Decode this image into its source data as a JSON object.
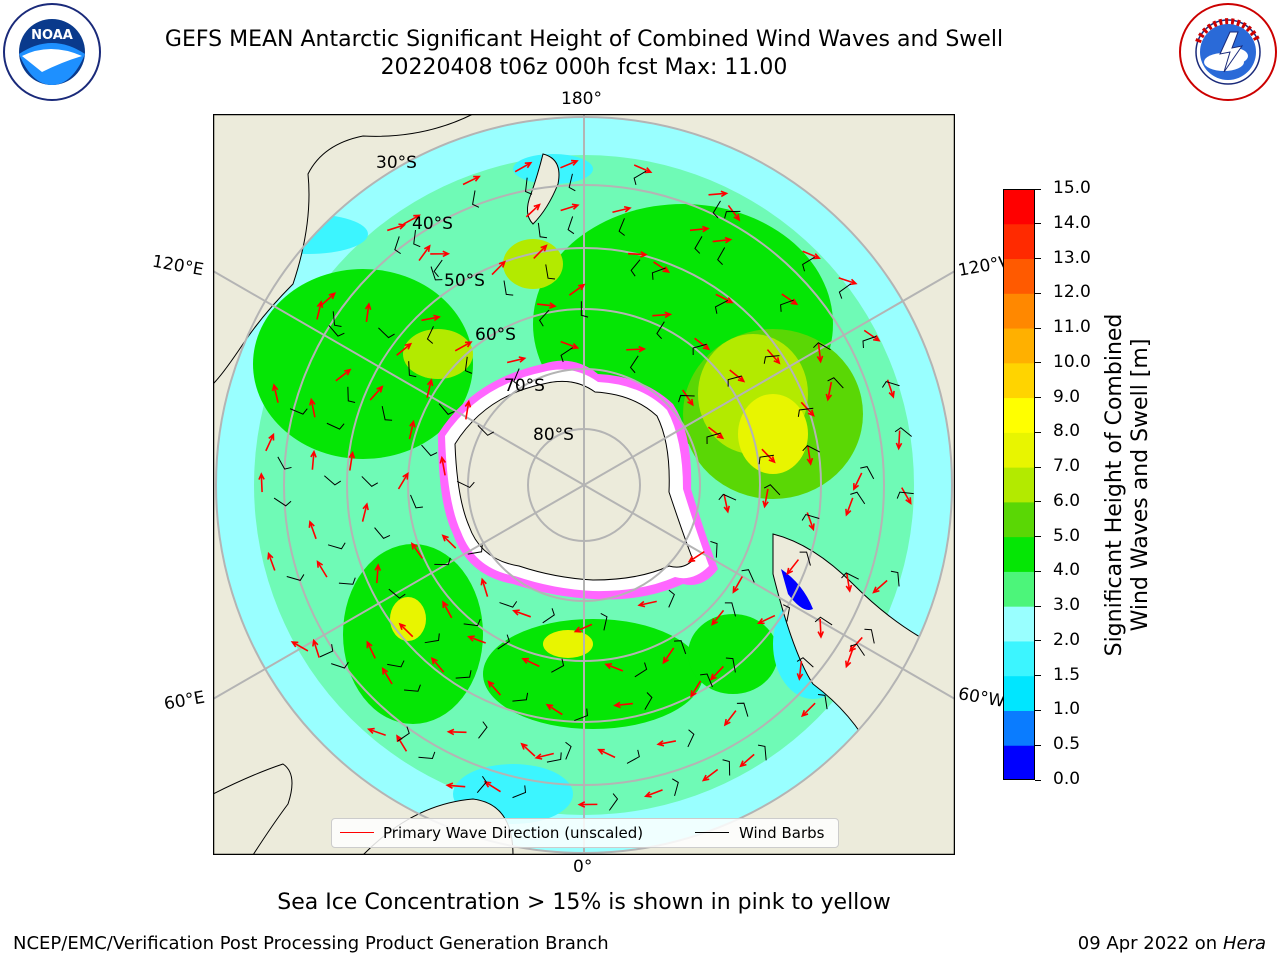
{
  "title": {
    "line1": "GEFS MEAN Antarctic Significant Height of Combined Wind Waves and Swell",
    "line2": "20220408 t06z 000h fcst   Max: 11.00"
  },
  "logos": {
    "noaa_text": "NOAA",
    "noaa_ring": "NATIONAL OCEANIC AND ATMOSPHERIC ADMINISTRATION · U.S. DEPARTMENT OF COMMERCE",
    "nws_ring": "NATIONAL WEATHER SERVICE"
  },
  "map": {
    "longitude_labels": [
      "180°",
      "120°E",
      "120°W",
      "60°E",
      "60°W",
      "0°"
    ],
    "latitude_labels": [
      "30°S",
      "40°S",
      "50°S",
      "60°S",
      "70°S",
      "80°S"
    ],
    "colors": {
      "land": "#ecebdb",
      "ice_edge": "#ff33ff",
      "ice_inner": "#ffb020",
      "wave_arrow": "#ff0000",
      "wind_barb": "#000000",
      "grid": "#b4b4b4"
    }
  },
  "legend": {
    "primary_wave": "Primary Wave Direction (unscaled)",
    "wind_barbs": "Wind Barbs"
  },
  "colorbar": {
    "title_line1": "Significant Height of Combined",
    "title_line2": "Wind Waves and Swell [m]",
    "ticks": [
      "0.0",
      "0.5",
      "1.0",
      "1.5",
      "2.0",
      "3.0",
      "4.0",
      "5.0",
      "6.0",
      "7.0",
      "8.0",
      "9.0",
      "10.0",
      "11.0",
      "12.0",
      "13.0",
      "14.0",
      "15.0"
    ],
    "colors": [
      "#0000ff",
      "#0a7cff",
      "#00e6ff",
      "#3cf5ff",
      "#99ffff",
      "#4cf57a",
      "#05e605",
      "#5ad705",
      "#b3ea00",
      "#e8f500",
      "#ffff00",
      "#ffd400",
      "#ffb000",
      "#ff8800",
      "#ff5a00",
      "#ff2a00",
      "#ff0000"
    ]
  },
  "subtitle": "Sea Ice Concentration > 15% is shown in pink to yellow",
  "footer": {
    "left": "NCEP/EMC/Verification Post Processing Product Generation Branch",
    "date": "09 Apr 2022 on",
    "machine": "Hera"
  }
}
